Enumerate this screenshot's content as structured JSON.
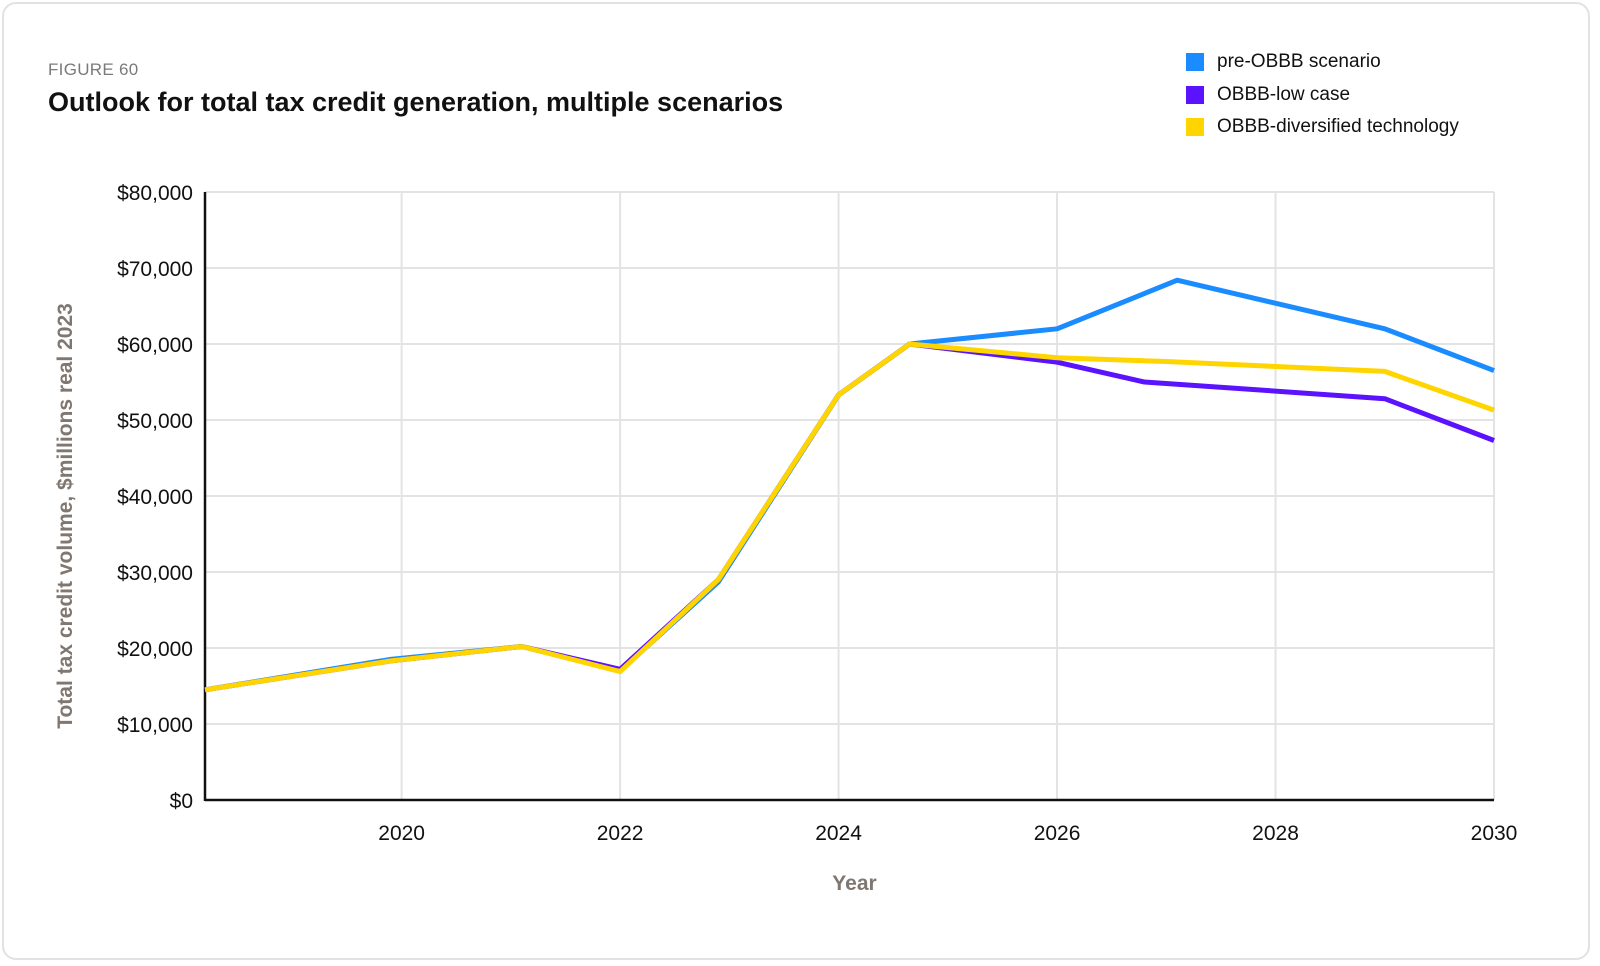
{
  "figure_label": "FIGURE 60",
  "chart_data": {
    "type": "line",
    "title": "Outlook for total tax credit generation, multiple scenarios",
    "xlabel": "Year",
    "ylabel": "Total tax credit volume, $millions real 2023",
    "xlim": [
      2018.2,
      2030
    ],
    "ylim": [
      0,
      80000
    ],
    "x_ticks": [
      2020,
      2022,
      2024,
      2026,
      2028,
      2030
    ],
    "y_ticks": [
      0,
      10000,
      20000,
      30000,
      40000,
      50000,
      60000,
      70000,
      80000
    ],
    "y_tick_labels": [
      "$0",
      "$10,000",
      "$20,000",
      "$30,000",
      "$40,000",
      "$50,000",
      "$60,000",
      "$70,000",
      "$80,000"
    ],
    "grid": true,
    "legend_position": "top-right",
    "series": [
      {
        "name": "pre-OBBB scenario",
        "color": "#1a8cff",
        "x": [
          2018.2,
          2019.9,
          2021.1,
          2022.0,
          2022.9,
          2024.0,
          2024.65,
          2026.0,
          2027.1,
          2029.0,
          2030.0
        ],
        "y": [
          14500,
          18500,
          20200,
          17000,
          28700,
          53300,
          60000,
          62000,
          68400,
          62000,
          56500
        ]
      },
      {
        "name": "OBBB-low case",
        "color": "#5b12ff",
        "x": [
          2018.2,
          2019.9,
          2021.1,
          2022.0,
          2022.9,
          2024.0,
          2024.65,
          2026.0,
          2026.8,
          2029.0,
          2030.0
        ],
        "y": [
          14500,
          18300,
          20200,
          17200,
          29000,
          53300,
          60000,
          57600,
          55000,
          52800,
          47300
        ]
      },
      {
        "name": "OBBB-diversified technology",
        "color": "#ffd500",
        "x": [
          2018.2,
          2019.9,
          2021.1,
          2022.0,
          2022.9,
          2024.0,
          2024.65,
          2026.0,
          2027.0,
          2029.0,
          2030.0
        ],
        "y": [
          14500,
          18300,
          20200,
          16900,
          29000,
          53300,
          60000,
          58200,
          57700,
          56400,
          51300
        ]
      }
    ]
  }
}
